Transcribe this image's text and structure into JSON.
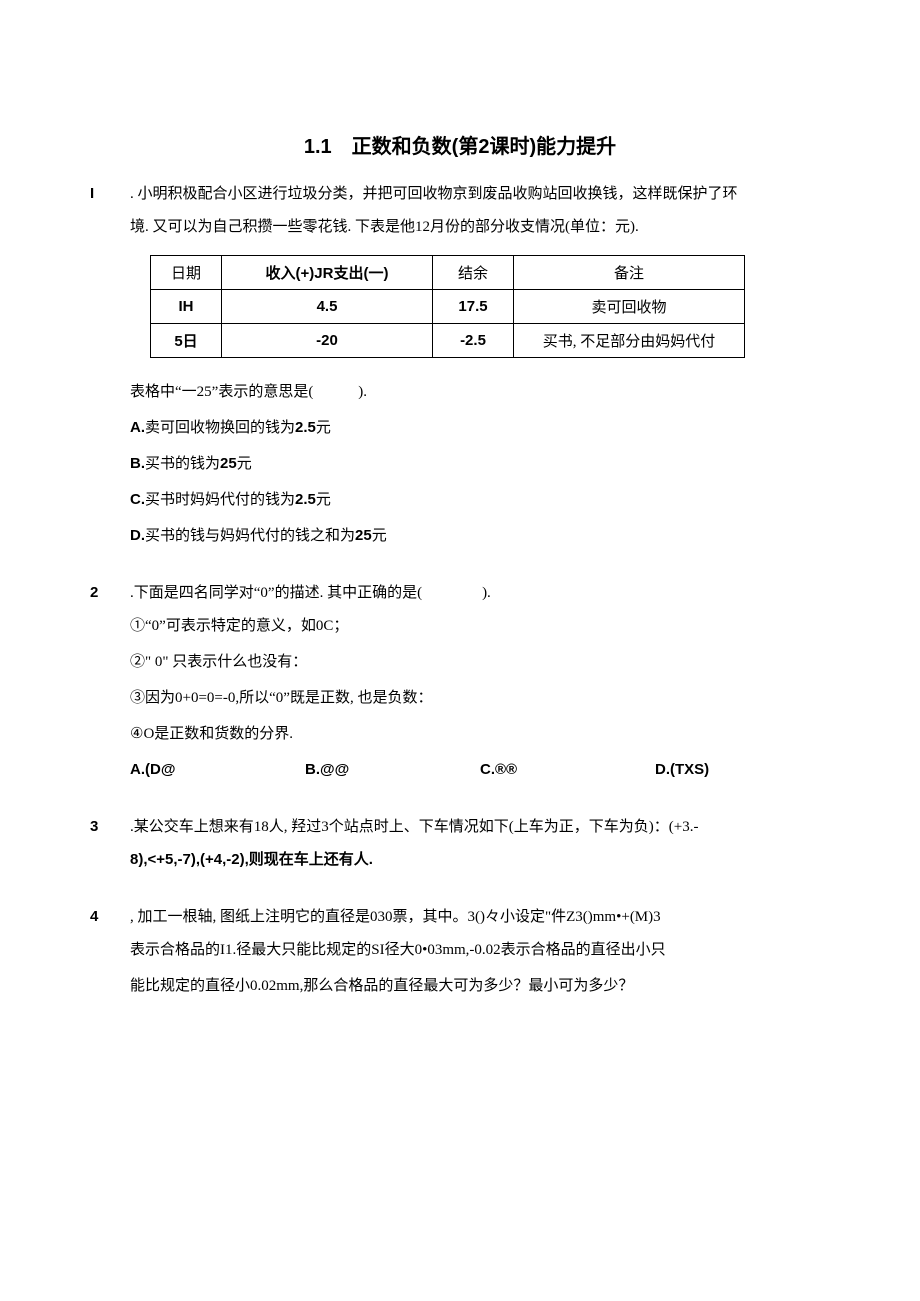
{
  "title": "1.1　正数和负数(第2课时)能力提升",
  "q1": {
    "num": "I",
    "line1": ". 小明积极配合小区进行垃圾分类，并把可回收物京到废品收购站回收换钱，这样既保护了环",
    "line2": "境. 又可以为自己积攒一些零花钱. 下表是他12月份的部分收支情况(单位：元).",
    "table": {
      "h1": "日期",
      "h2": "收入(+)JR支出(一)",
      "h3": "结余",
      "h4": "备注",
      "r1c1": "IH",
      "r1c2": "4.5",
      "r1c3": "17.5",
      "r1c4": "卖可回收物",
      "r2c1": "5日",
      "r2c2": "-20",
      "r2c3": "-2.5",
      "r2c4": "买书, 不足部分由妈妈代付"
    },
    "ask": "表格中“一25”表示的意思是(　　　).",
    "optA": "A.卖可回收物换回的钱为2.5元",
    "optB": "B.买书的钱为25元",
    "optC": "C.买书时妈妈代付的钱为2.5元",
    "optD": "D.买书的钱与妈妈代付的钱之和为25元"
  },
  "q2": {
    "num": "2",
    "line1": " .下面是四名同学对“0”的描述. 其中正确的是(　　　　).",
    "s1": "①“0”可表示特定的意义，如0C；",
    "s2": "②\" 0\" 只表示什么也没有：",
    "s3": "③因为0+0=0=-0,所以“0”既是正数, 也是负数：",
    "s4": "④O是正数和货数的分界.",
    "optA": "A.(D@",
    "optB": "B.@@",
    "optC": "C.®®",
    "optD": "D.(TXS)"
  },
  "q3": {
    "num": "3",
    "line1": " .某公交车上想来有18人, 羟过3个站点时上、下车情况如下(上车为正，下车为负)：(+3.-",
    "line2": "8),<+5,-7),(+4,-2),则现在车上还有人."
  },
  "q4": {
    "num": "4",
    "line1": ", 加工一根轴, 图纸上注明它的直径是030票，其中。3()々小设定\"件Z3()mm•+(M)3",
    "line2": "表示合格品的I1.径最大只能比规定的SI径大0•03mm,-0.02表示合格品的直径出小只",
    "line3": "能比规定的直径小0.02mm,那么合格品的直径最大可为多少？最小可为多少？"
  }
}
